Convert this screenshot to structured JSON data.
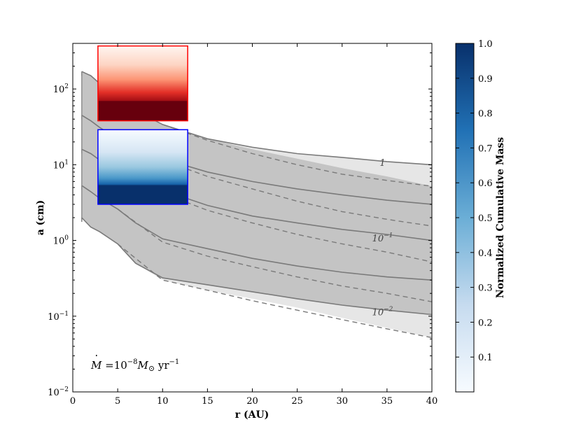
{
  "chart_data": {
    "type": "area",
    "xlabel": "r (AU)",
    "ylabel": "a (cm)",
    "xlim": [
      0,
      40
    ],
    "ylim": [
      0.01,
      400
    ],
    "yscale": "log",
    "grid": false,
    "x_ticks": [
      0,
      5,
      10,
      15,
      20,
      25,
      30,
      35,
      40
    ],
    "y_ticks": [
      {
        "value": 0.01,
        "base": "10",
        "exp": "−2"
      },
      {
        "value": 0.1,
        "base": "10",
        "exp": "−1"
      },
      {
        "value": 1,
        "base": "10",
        "exp": "0"
      },
      {
        "value": 10,
        "base": "10",
        "exp": "1"
      },
      {
        "value": 100,
        "base": "10",
        "exp": "2"
      }
    ],
    "annotation": {
      "mdot": "M",
      "eq": " =10",
      "exp1": "−8",
      "m": "M",
      "sun": "⊙",
      "yr": " yr",
      "exp2": "−1"
    },
    "colorbar": {
      "label": "Normalized Cumulative Mass",
      "colormap": "Blues",
      "range": [
        0,
        1
      ],
      "ticks": [
        "0.1",
        "0.2",
        "0.3",
        "0.4",
        "0.5",
        "0.6",
        "0.7",
        "0.8",
        "0.9",
        "1.0"
      ]
    },
    "regions": [
      {
        "name": "outer-envelope",
        "color": "#e6e6e6",
        "r": [
          1,
          2,
          3,
          5,
          7,
          10,
          15,
          20,
          25,
          30,
          35,
          40
        ],
        "upper": [
          170,
          150,
          118,
          75,
          52,
          34,
          21.5,
          16.5,
          14,
          12.5,
          11,
          10
        ],
        "lower": [
          2.0,
          1.5,
          1.3,
          0.9,
          0.5,
          0.3,
          0.22,
          0.17,
          0.13,
          0.095,
          0.07,
          0.052
        ]
      },
      {
        "name": "inner-envelope",
        "color": "#c4c4c4",
        "r": [
          1,
          2,
          3,
          5,
          7,
          10,
          15,
          20,
          25,
          30,
          35,
          40
        ],
        "upper": [
          170,
          150,
          118,
          75,
          52,
          34,
          22,
          16,
          12,
          9,
          7,
          5.2
        ],
        "lower": [
          2.0,
          1.5,
          1.3,
          0.9,
          0.5,
          0.32,
          0.26,
          0.21,
          0.17,
          0.14,
          0.12,
          0.105
        ]
      }
    ],
    "solid_curves": [
      {
        "r": [
          1,
          2,
          3,
          5,
          7,
          10,
          15,
          20,
          25,
          30,
          35,
          40
        ],
        "a": [
          170,
          150,
          118,
          75,
          52,
          34,
          22,
          17,
          14,
          12.5,
          11,
          10
        ]
      },
      {
        "r": [
          1,
          2,
          3,
          5,
          7,
          10,
          15,
          20,
          25,
          30,
          35,
          40
        ],
        "a": [
          45,
          38,
          31,
          22,
          16,
          12,
          8,
          6,
          4.8,
          4.0,
          3.4,
          3.0
        ]
      },
      {
        "r": [
          1,
          2,
          3,
          5,
          7,
          10,
          15,
          20,
          25,
          30,
          35,
          40
        ],
        "a": [
          16,
          14,
          11.5,
          8.5,
          6.5,
          4.6,
          2.9,
          2.1,
          1.7,
          1.4,
          1.2,
          1.0
        ]
      },
      {
        "r": [
          1,
          2,
          3,
          5,
          7,
          10,
          15,
          20,
          25,
          30,
          35,
          40
        ],
        "a": [
          5.3,
          4.4,
          3.6,
          2.6,
          1.7,
          1.05,
          0.78,
          0.58,
          0.46,
          0.38,
          0.33,
          0.3
        ]
      },
      {
        "r": [
          1,
          2,
          3,
          5,
          7,
          10,
          15,
          20,
          25,
          30,
          35,
          40
        ],
        "a": [
          2.0,
          1.5,
          1.3,
          0.9,
          0.5,
          0.32,
          0.26,
          0.21,
          0.17,
          0.14,
          0.12,
          0.105
        ]
      }
    ],
    "dashed_curves": [
      {
        "r": [
          10,
          15,
          20,
          25,
          30,
          35,
          40
        ],
        "a": [
          34,
          21,
          14,
          10,
          7.5,
          6.2,
          5.2
        ]
      },
      {
        "r": [
          5,
          10,
          15,
          20,
          25,
          30,
          35,
          40
        ],
        "a": [
          22,
          11.5,
          7,
          4.8,
          3.3,
          2.4,
          1.9,
          1.55
        ]
      },
      {
        "r": [
          5,
          10,
          15,
          20,
          25,
          30,
          35,
          40
        ],
        "a": [
          8.5,
          4.2,
          2.5,
          1.7,
          1.2,
          0.9,
          0.7,
          0.52
        ]
      },
      {
        "r": [
          5,
          10,
          15,
          20,
          25,
          30,
          35,
          40
        ],
        "a": [
          2.6,
          0.95,
          0.62,
          0.45,
          0.33,
          0.25,
          0.2,
          0.155
        ]
      },
      {
        "r": [
          5,
          10,
          15,
          20,
          25,
          30,
          35,
          40
        ],
        "a": [
          0.9,
          0.3,
          0.22,
          0.16,
          0.12,
          0.09,
          0.068,
          0.052
        ]
      }
    ],
    "contour_labels": [
      {
        "text": "1",
        "r": 34.5,
        "a": 10.5
      },
      {
        "text": "10",
        "exp": "−1",
        "r": 34.5,
        "a": 1.06
      },
      {
        "text": "10",
        "exp": "−2",
        "r": 34.5,
        "a": 0.112
      }
    ],
    "inset_red": {
      "cmap": "Reds",
      "r_range": [
        2.8,
        12.8
      ],
      "a_range": [
        38,
        370
      ]
    },
    "inset_blue": {
      "cmap": "Blues",
      "r_range": [
        2.8,
        12.8
      ],
      "a_range": [
        3.0,
        29
      ]
    }
  }
}
